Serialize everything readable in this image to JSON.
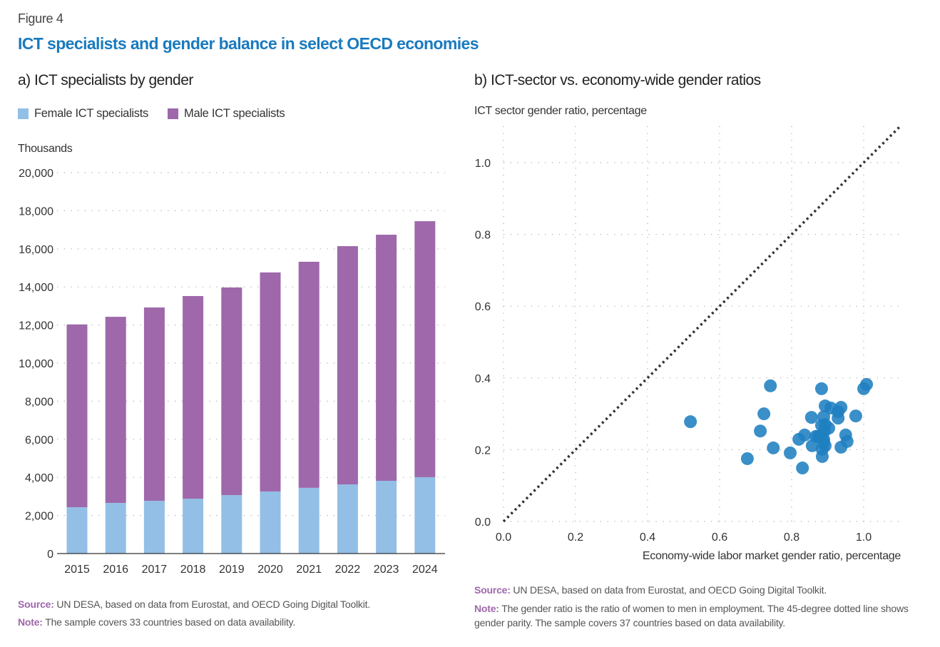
{
  "figure_label": "Figure 4",
  "title": "ICT specialists and gender balance in select OECD economies",
  "colors": {
    "title": "#1a7abf",
    "female": "#93bfe6",
    "male": "#9e68aa",
    "scatter": "#1f7fc0",
    "note_label": "#9e68aa"
  },
  "chart_data": [
    {
      "type": "bar",
      "stacked": true,
      "title": "a) ICT specialists by gender",
      "ylabel": "Thousands",
      "categories": [
        "2015",
        "2016",
        "2017",
        "2018",
        "2019",
        "2020",
        "2021",
        "2022",
        "2023",
        "2024"
      ],
      "series": [
        {
          "name": "Female  ICT specialists",
          "values": [
            2430,
            2660,
            2770,
            2880,
            3070,
            3260,
            3450,
            3630,
            3820,
            4010
          ]
        },
        {
          "name": "Male  ICT specialists",
          "values": [
            9600,
            9770,
            10150,
            10640,
            10900,
            11500,
            11870,
            12510,
            12920,
            13440
          ]
        }
      ],
      "ylim": [
        0,
        20000
      ],
      "yticks": [
        "0",
        "2,000",
        "4,000",
        "6,000",
        "8,000",
        "10,000",
        "12,000",
        "14,000",
        "16,000",
        "18,000",
        "20,000"
      ],
      "grid": true,
      "legend": "top-left",
      "source_label": "Source:",
      "source": " UN DESA, based on data from Eurostat, and OECD Going Digital Toolkit.",
      "note_label": "Note:",
      "note": " The sample covers 33 countries based on data availability."
    },
    {
      "type": "scatter",
      "title": "b) ICT-sector vs. economy-wide gender ratios",
      "ylabel": "ICT sector gender ratio, percentage",
      "xlabel": "Economy-wide labor market gender ratio, percentage",
      "xlim": [
        0,
        1.1
      ],
      "ylim": [
        0,
        1.1
      ],
      "xticks": [
        "0.0",
        "0.2",
        "0.4",
        "0.6",
        "0.8",
        "1.0"
      ],
      "yticks": [
        "0.0",
        "0.2",
        "0.4",
        "0.6",
        "0.8",
        "1.0"
      ],
      "grid": true,
      "reference_line": "45-degree dotted line",
      "points": [
        [
          0.519,
          0.278
        ],
        [
          0.741,
          0.378
        ],
        [
          0.723,
          0.3
        ],
        [
          0.713,
          0.252
        ],
        [
          0.677,
          0.175
        ],
        [
          0.749,
          0.205
        ],
        [
          0.796,
          0.191
        ],
        [
          0.83,
          0.149
        ],
        [
          0.82,
          0.229
        ],
        [
          0.836,
          0.241
        ],
        [
          0.855,
          0.29
        ],
        [
          0.857,
          0.211
        ],
        [
          0.883,
          0.37
        ],
        [
          0.893,
          0.322
        ],
        [
          0.889,
          0.292
        ],
        [
          0.893,
          0.27
        ],
        [
          0.891,
          0.252
        ],
        [
          0.879,
          0.237
        ],
        [
          0.889,
          0.229
        ],
        [
          0.885,
          0.201
        ],
        [
          0.885,
          0.181
        ],
        [
          0.889,
          0.221
        ],
        [
          0.909,
          0.316
        ],
        [
          0.929,
          0.306
        ],
        [
          0.937,
          0.318
        ],
        [
          0.929,
          0.288
        ],
        [
          0.978,
          0.294
        ],
        [
          1.0,
          0.37
        ],
        [
          1.008,
          0.382
        ],
        [
          0.95,
          0.241
        ],
        [
          0.954,
          0.223
        ],
        [
          0.937,
          0.207
        ],
        [
          0.873,
          0.237
        ],
        [
          0.893,
          0.211
        ],
        [
          0.883,
          0.268
        ],
        [
          0.903,
          0.26
        ],
        [
          0.867,
          0.237
        ]
      ],
      "source_label": "Source:",
      "source": " UN DESA, based on data from Eurostat, and OECD Going Digital Toolkit.",
      "note_label": "Note:",
      "note": " The gender ratio is the ratio of women to men in employment. The 45-degree dotted line shows gender parity. The sample covers 37 countries based on data availability."
    }
  ]
}
